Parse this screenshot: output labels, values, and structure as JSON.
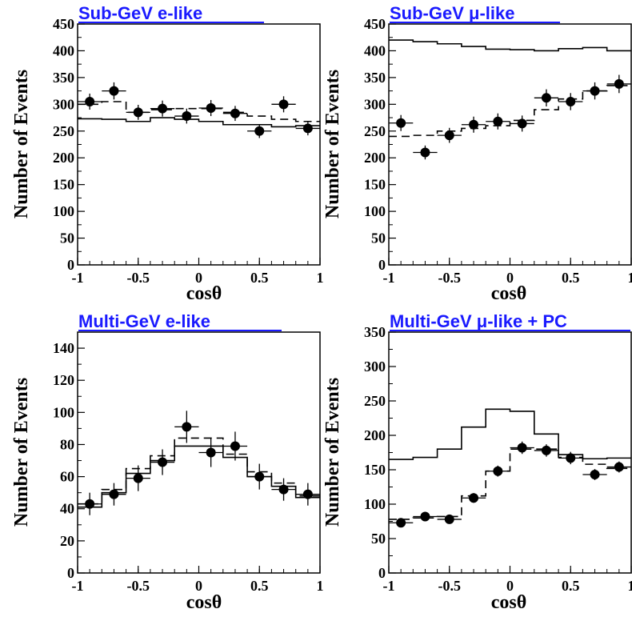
{
  "chart_data": [
    {
      "type": "line",
      "title": "Sub-GeV e-like",
      "xlabel": "cosθ",
      "ylabel": "Number of Events",
      "xlim": [
        -1,
        1
      ],
      "ylim": [
        0,
        450
      ],
      "xticks": [
        "-1",
        "-0.5",
        "0",
        "0.5",
        "1"
      ],
      "yticks": [
        "0",
        "50",
        "100",
        "150",
        "200",
        "250",
        "300",
        "350",
        "400",
        "450"
      ],
      "ytick_values": [
        0,
        50,
        100,
        150,
        200,
        250,
        300,
        350,
        400,
        450
      ],
      "bin_edges": [
        -1,
        -0.8,
        -0.6,
        -0.4,
        -0.2,
        0,
        0.2,
        0.4,
        0.6,
        0.8,
        1
      ],
      "series": [
        {
          "style": "solid",
          "values": [
            273,
            272,
            268,
            275,
            272,
            268,
            262,
            262,
            258,
            260
          ]
        },
        {
          "style": "dashed",
          "values": [
            300,
            305,
            285,
            290,
            292,
            292,
            285,
            278,
            272,
            268
          ]
        },
        {
          "style": "points",
          "x": [
            -0.9,
            -0.7,
            -0.5,
            -0.3,
            -0.1,
            0.1,
            0.3,
            0.5,
            0.7,
            0.9
          ],
          "values": [
            305,
            325,
            285,
            292,
            278,
            293,
            283,
            250,
            300,
            255
          ],
          "errors": [
            15,
            16,
            14,
            15,
            14,
            15,
            14,
            13,
            15,
            13
          ]
        }
      ]
    },
    {
      "type": "line",
      "title": "Sub-GeV μ-like",
      "xlabel": "cosθ",
      "ylabel": "Number of Events",
      "xlim": [
        -1,
        1
      ],
      "ylim": [
        0,
        450
      ],
      "xticks": [
        "-1",
        "-0.5",
        "0",
        "0.5",
        "1"
      ],
      "yticks": [
        "0",
        "50",
        "100",
        "150",
        "200",
        "250",
        "300",
        "350",
        "400",
        "450"
      ],
      "ytick_values": [
        0,
        50,
        100,
        150,
        200,
        250,
        300,
        350,
        400,
        450
      ],
      "bin_edges": [
        -1,
        -0.8,
        -0.6,
        -0.4,
        -0.2,
        0,
        0.2,
        0.4,
        0.6,
        0.8,
        1
      ],
      "series": [
        {
          "style": "solid",
          "values": [
            420,
            417,
            413,
            408,
            403,
            402,
            400,
            404,
            406,
            400
          ]
        },
        {
          "style": "dashed",
          "values": [
            240,
            242,
            250,
            255,
            260,
            270,
            290,
            310,
            325,
            335
          ]
        },
        {
          "style": "points",
          "x": [
            -0.9,
            -0.7,
            -0.5,
            -0.3,
            -0.1,
            0.1,
            0.3,
            0.5,
            0.7,
            0.9
          ],
          "values": [
            265,
            210,
            242,
            262,
            268,
            264,
            312,
            305,
            325,
            338
          ],
          "errors": [
            15,
            13,
            14,
            15,
            15,
            15,
            16,
            16,
            16,
            17
          ]
        }
      ]
    },
    {
      "type": "line",
      "title": "Multi-GeV e-like",
      "xlabel": "cosθ",
      "ylabel": "Number of Events",
      "xlim": [
        -1,
        1
      ],
      "ylim": [
        0,
        150
      ],
      "xticks": [
        "-1",
        "-0.5",
        "0",
        "0.5",
        "1"
      ],
      "yticks": [
        "0",
        "20",
        "40",
        "60",
        "80",
        "100",
        "120",
        "140"
      ],
      "ytick_values": [
        0,
        20,
        40,
        60,
        80,
        100,
        120,
        140
      ],
      "bin_edges": [
        -1,
        -0.8,
        -0.6,
        -0.4,
        -0.2,
        0,
        0.2,
        0.4,
        0.6,
        0.8,
        1
      ],
      "series": [
        {
          "style": "solid",
          "values": [
            41,
            50,
            62,
            70,
            79,
            79,
            72,
            60,
            54,
            47
          ]
        },
        {
          "style": "dashed",
          "values": [
            43,
            52,
            65,
            73,
            84,
            84,
            74,
            63,
            56,
            48
          ]
        },
        {
          "style": "points",
          "x": [
            -0.9,
            -0.7,
            -0.5,
            -0.3,
            -0.1,
            0.1,
            0.3,
            0.5,
            0.7,
            0.9
          ],
          "values": [
            43,
            49,
            59,
            69,
            91,
            75,
            79,
            60,
            52,
            49
          ],
          "errors": [
            7,
            7,
            8,
            8,
            10,
            9,
            9,
            8,
            7,
            7
          ]
        }
      ]
    },
    {
      "type": "line",
      "title": "Multi-GeV μ-like + PC",
      "xlabel": "cosθ",
      "ylabel": "Number of Events",
      "xlim": [
        -1,
        1
      ],
      "ylim": [
        0,
        350
      ],
      "xticks": [
        "-1",
        "-0.5",
        "0",
        "0.5",
        "1"
      ],
      "yticks": [
        "0",
        "50",
        "100",
        "150",
        "200",
        "250",
        "300",
        "350"
      ],
      "ytick_values": [
        0,
        50,
        100,
        150,
        200,
        250,
        300,
        350
      ],
      "bin_edges": [
        -1,
        -0.8,
        -0.6,
        -0.4,
        -0.2,
        0,
        0.2,
        0.4,
        0.6,
        0.8,
        1
      ],
      "series": [
        {
          "style": "solid",
          "values": [
            165,
            168,
            180,
            212,
            238,
            235,
            202,
            172,
            166,
            167
          ]
        },
        {
          "style": "dashed",
          "values": [
            78,
            80,
            82,
            112,
            148,
            180,
            180,
            168,
            158,
            152
          ]
        },
        {
          "style": "points",
          "x": [
            -0.9,
            -0.7,
            -0.5,
            -0.3,
            -0.1,
            0.1,
            0.3,
            0.5,
            0.7,
            0.9
          ],
          "values": [
            73,
            82,
            78,
            109,
            148,
            182,
            178,
            167,
            143,
            154
          ],
          "errors": [
            6,
            6,
            6,
            7,
            8,
            9,
            9,
            9,
            8,
            8
          ]
        }
      ]
    }
  ]
}
